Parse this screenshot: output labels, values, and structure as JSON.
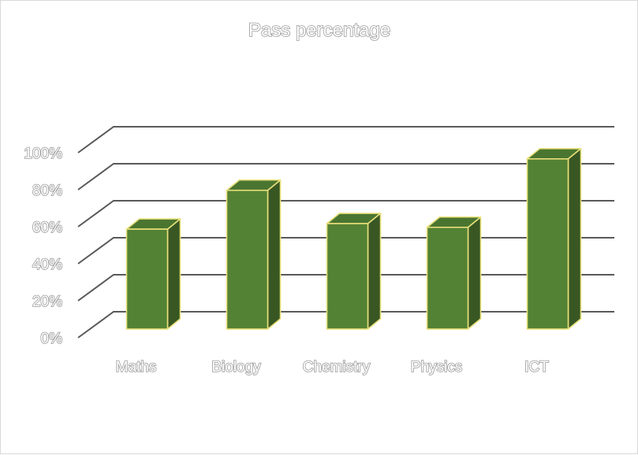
{
  "chart_data": {
    "type": "bar",
    "title": "Pass percentage",
    "categories": [
      "Maths",
      "Biology",
      "Chemistry",
      "Physics",
      "ICT"
    ],
    "values": [
      54,
      75,
      57,
      55,
      92
    ],
    "yticks": [
      "0%",
      "20%",
      "40%",
      "60%",
      "80%",
      "100%"
    ],
    "ylim": [
      0,
      100
    ],
    "xlabel": "",
    "ylabel": "",
    "legend": "none",
    "grid": true
  },
  "colors": {
    "bar_front": "#548235",
    "bar_side": "#385723",
    "bar_top": "#4a7530",
    "bar_outline": "#e8e07a",
    "grid": "#595959"
  }
}
